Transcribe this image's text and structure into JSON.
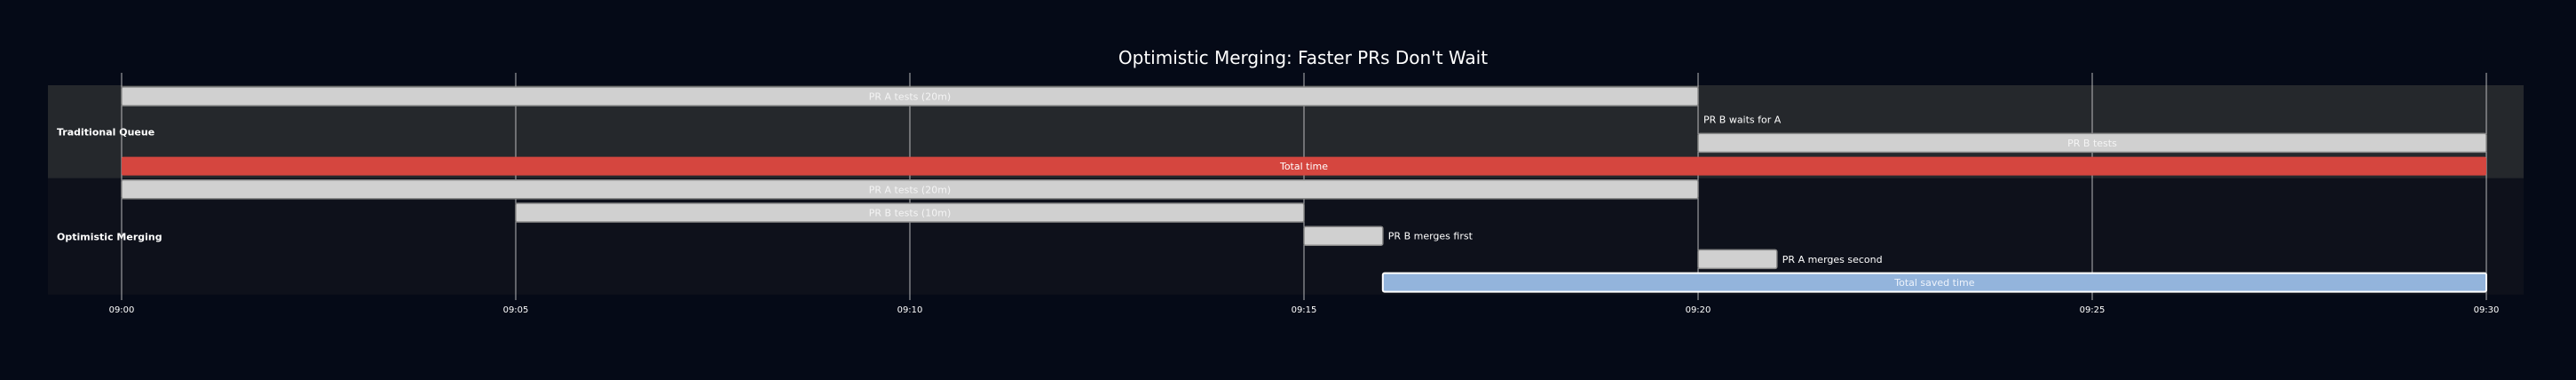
{
  "chart_data": {
    "type": "gantt",
    "title": "Optimistic Merging: Faster PRs Don't Wait",
    "x_axis": {
      "range": [
        "09:00",
        "09:30"
      ],
      "ticks": [
        "09:00",
        "09:05",
        "09:10",
        "09:15",
        "09:20",
        "09:25",
        "09:30"
      ],
      "grid": true
    },
    "sections": [
      {
        "name": "Traditional Queue",
        "tasks": [
          {
            "label": "PR A tests (20m)",
            "start": "09:00",
            "end": "09:20",
            "style": "default"
          },
          {
            "label": "PR B waits for A",
            "start": "09:20",
            "end": "09:20",
            "style": "milestone-label"
          },
          {
            "label": "PR B tests",
            "start": "09:20",
            "end": "09:30",
            "style": "default"
          },
          {
            "label": "Total time",
            "start": "09:00",
            "end": "09:30",
            "style": "critical"
          }
        ]
      },
      {
        "name": "Optimistic Merging",
        "tasks": [
          {
            "label": "PR A tests (20m)",
            "start": "09:00",
            "end": "09:20",
            "style": "default"
          },
          {
            "label": "PR B tests (10m)",
            "start": "09:05",
            "end": "09:15",
            "style": "default"
          },
          {
            "label": "PR B merges first",
            "start": "09:15",
            "end": "09:16",
            "style": "default"
          },
          {
            "label": "PR A merges second",
            "start": "09:20",
            "end": "09:21",
            "style": "default"
          },
          {
            "label": "Total saved time",
            "start": "09:16",
            "end": "09:30",
            "style": "active"
          }
        ]
      }
    ],
    "colors": {
      "background": "#050a17",
      "section_band_1": "#25282c",
      "section_band_2": "#0e111b",
      "bar_default": "#d0d0d0",
      "bar_default_border": "#8a8a8a",
      "bar_critical": "#d5463f",
      "bar_active": "#93b4dc",
      "grid": "#d4d4d4",
      "text": "#ffffff"
    }
  }
}
